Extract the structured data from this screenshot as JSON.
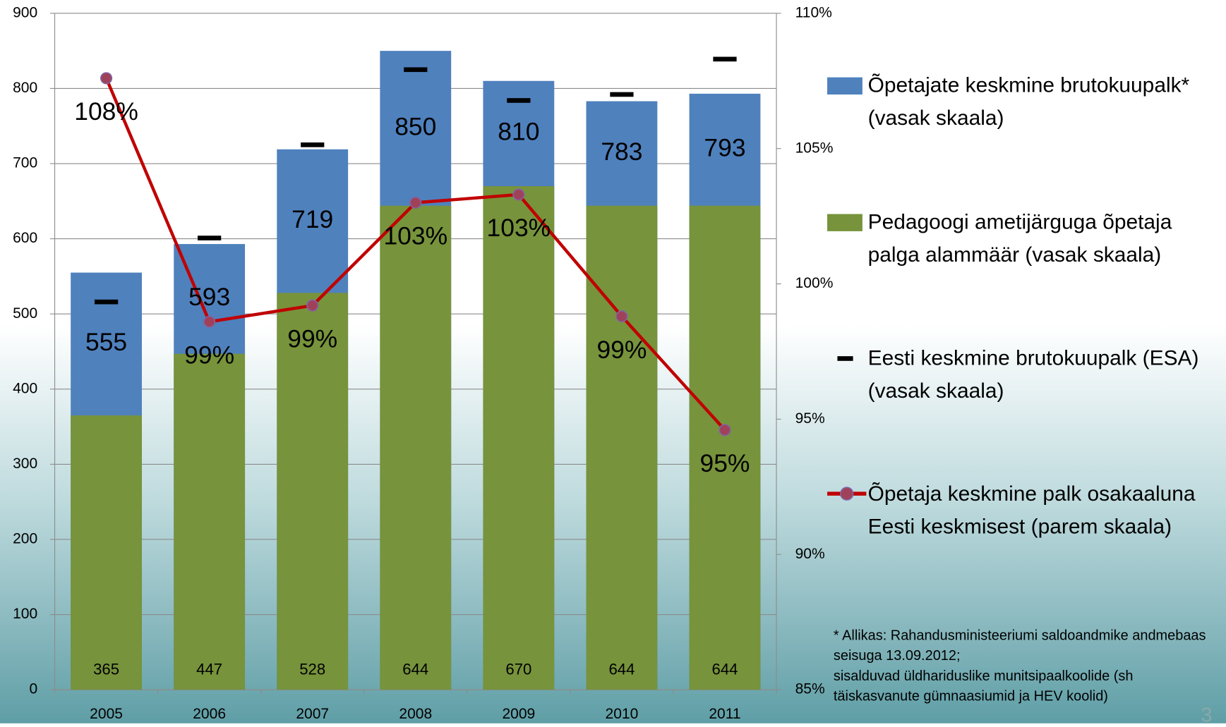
{
  "chart_data": {
    "type": "bar",
    "categories": [
      "2005",
      "2006",
      "2007",
      "2008",
      "2009",
      "2010",
      "2011"
    ],
    "series": [
      {
        "name": "Õpetajate keskmine brutokuupalk* (vasak skaala)",
        "type": "bar",
        "color": "#4f81bd",
        "values": [
          555,
          593,
          719,
          850,
          810,
          783,
          793
        ]
      },
      {
        "name": "Pedagoogi ametijärguga õpetaja palga alammäär (vasak skaala)",
        "type": "bar",
        "color": "#77933c",
        "values": [
          365,
          447,
          528,
          644,
          670,
          644,
          644
        ]
      },
      {
        "name": "Eesti keskmine brutokuupalk (ESA) (vasak skaala)",
        "type": "dash",
        "color": "#000000",
        "values": [
          516,
          601,
          725,
          825,
          784,
          792,
          839
        ]
      },
      {
        "name": "Õpetaja keskmine palk osakaaluna Eesti keskmisest (parem skaala)",
        "type": "line",
        "axis": "y2",
        "color": "#c00000",
        "marker_color": "#a0415a",
        "values": [
          107.6,
          98.6,
          99.2,
          103.0,
          103.3,
          98.8,
          94.6
        ],
        "value_labels": [
          "108%",
          "99%",
          "99%",
          "103%",
          "103%",
          "99%",
          "95%"
        ]
      }
    ],
    "ylim": [
      0,
      900
    ],
    "yticks": [
      0,
      100,
      200,
      300,
      400,
      500,
      600,
      700,
      800,
      900
    ],
    "y2lim": [
      85,
      110
    ],
    "y2ticks": [
      {
        "value": 85,
        "label": "85%"
      },
      {
        "value": 90,
        "label": "90%"
      },
      {
        "value": 95,
        "label": "95%"
      },
      {
        "value": 100,
        "label": "100%"
      },
      {
        "value": 105,
        "label": "105%"
      },
      {
        "value": 110,
        "label": "110%"
      }
    ],
    "grid": true,
    "legend": "right",
    "footnote": [
      "* Allikas: Rahandusministeeriumi saldoandmike andmebaas seisuga 13.09.2012;",
      "sisalduvad üldhariduslike munitsipaalkoolide (sh täiskasvanute gümnaasiumid ja HEV koolid)"
    ],
    "page_number": "3"
  }
}
